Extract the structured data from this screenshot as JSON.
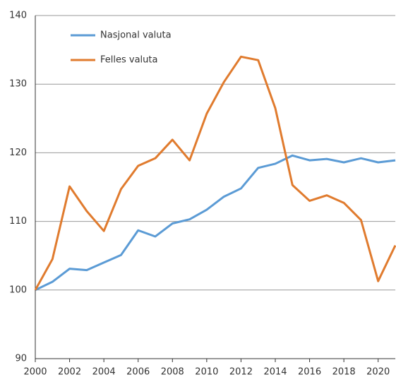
{
  "chart_data": {
    "type": "line",
    "x": [
      2000,
      2001,
      2002,
      2003,
      2004,
      2005,
      2006,
      2007,
      2008,
      2009,
      2010,
      2011,
      2012,
      2013,
      2014,
      2015,
      2016,
      2017,
      2018,
      2019,
      2020,
      2021
    ],
    "series": [
      {
        "name": "Nasjonal valuta",
        "color": "#5b9bd5",
        "values": [
          100,
          101.2,
          103.1,
          102.9,
          104,
          105.1,
          108.7,
          107.8,
          109.7,
          110.3,
          111.7,
          113.6,
          114.8,
          117.8,
          118.4,
          119.6,
          118.9,
          119.1,
          118.6,
          119.2,
          118.6,
          118.9
        ]
      },
      {
        "name": "Felles valuta",
        "color": "#e07b2e",
        "values": [
          100,
          104.5,
          115.1,
          111.5,
          108.6,
          114.7,
          118.1,
          119.2,
          121.9,
          118.9,
          125.7,
          130.3,
          134,
          133.5,
          126.5,
          115.3,
          113,
          113.8,
          112.7,
          110.2,
          101.3,
          106.5
        ]
      }
    ],
    "xlim": [
      2000,
      2021
    ],
    "xticks": [
      2000,
      2002,
      2004,
      2006,
      2008,
      2010,
      2012,
      2014,
      2016,
      2018,
      2020
    ],
    "ylim": [
      90,
      140
    ],
    "yticks": [
      90,
      100,
      110,
      120,
      130,
      140
    ],
    "grid": true,
    "legend": "upper left"
  }
}
